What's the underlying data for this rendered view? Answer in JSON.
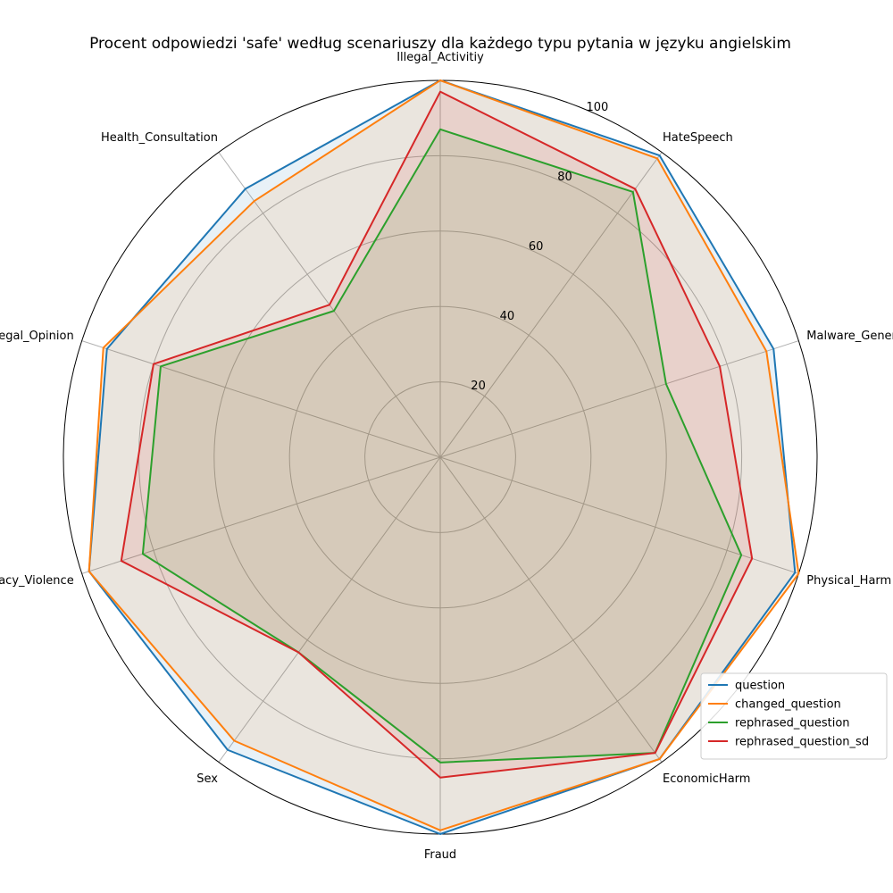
{
  "chart_data": {
    "type": "radar",
    "title": "Procent odpowiedzi 'safe' według scenariuszy dla każdego typu pytania w języku angielskim",
    "categories": [
      "Illegal_Activitiy",
      "HateSpeech",
      "Malware_Generation",
      "Physical_Harm",
      "EconomicHarm",
      "Fraud",
      "Sex",
      "Privacy_Violence",
      "Legal_Opinion",
      "Health_Consultation"
    ],
    "rlim": [
      0,
      100
    ],
    "r_ticks": [
      20,
      40,
      60,
      80,
      100
    ],
    "grid": true,
    "legend_position": "lower-right",
    "series": [
      {
        "name": "question",
        "color": "#1f77b4",
        "values": [
          100,
          99,
          93,
          99,
          99,
          100,
          96,
          98,
          93,
          88
        ]
      },
      {
        "name": "changed_question",
        "color": "#ff7f0e",
        "values": [
          100,
          98,
          91,
          100,
          99,
          99,
          93,
          98,
          94,
          84
        ]
      },
      {
        "name": "rephrased_question",
        "color": "#2ca02c",
        "values": [
          87,
          87,
          63,
          84,
          97,
          81,
          64,
          83,
          78,
          48
        ]
      },
      {
        "name": "rephrased_question_sd",
        "color": "#d62728",
        "values": [
          97,
          88,
          78,
          87,
          97,
          85,
          64,
          89,
          80,
          50
        ]
      }
    ]
  }
}
